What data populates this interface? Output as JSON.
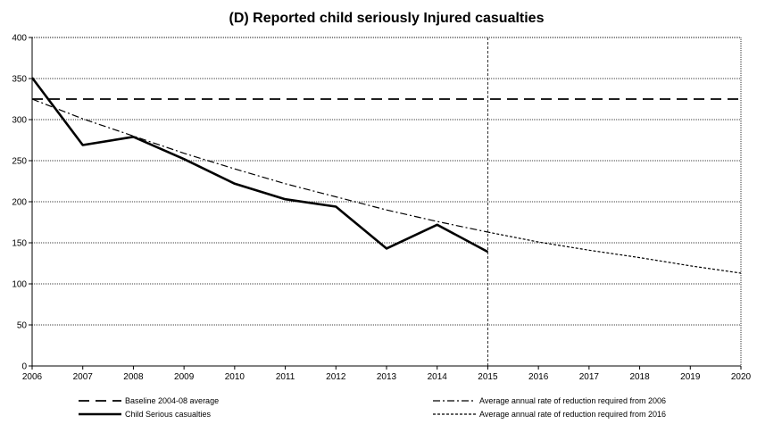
{
  "chart_data": {
    "type": "line",
    "title": "(D) Reported child seriously Injured casualties",
    "xlabel": "",
    "ylabel": "",
    "xlim": [
      2006,
      2020
    ],
    "ylim": [
      0,
      400
    ],
    "x_ticks": [
      "2006",
      "2007",
      "2008",
      "2009",
      "2010",
      "2011",
      "2012",
      "2013",
      "2014",
      "2015",
      "2016",
      "2017",
      "2018",
      "2019",
      "2020"
    ],
    "y_ticks": [
      "0",
      "50",
      "100",
      "150",
      "200",
      "250",
      "300",
      "350",
      "400"
    ],
    "grid": true,
    "vertical_marker_x": 2015,
    "legend_position": "bottom",
    "series": [
      {
        "name": "Baseline 2004-08 average",
        "style": "dashed",
        "x": [
          2006,
          2020
        ],
        "values": [
          325,
          325
        ]
      },
      {
        "name": "Child Serious casualties",
        "style": "solid-thick",
        "x": [
          2006,
          2007,
          2008,
          2009,
          2010,
          2011,
          2012,
          2013,
          2014,
          2015
        ],
        "values": [
          351,
          269,
          279,
          252,
          222,
          203,
          194,
          143,
          172,
          139
        ]
      },
      {
        "name": "Average annual rate of reduction required from 2006",
        "style": "dash-dot",
        "x": [
          2006,
          2007,
          2008,
          2009,
          2010,
          2011,
          2012,
          2013,
          2014,
          2015
        ],
        "values": [
          325,
          301,
          280,
          259,
          240,
          222,
          206,
          190,
          176,
          163
        ]
      },
      {
        "name": "Average annual rate of reduction required from 2016",
        "style": "dotted",
        "x": [
          2015,
          2016,
          2017,
          2018,
          2019,
          2020
        ],
        "values": [
          163,
          151,
          141,
          132,
          122,
          113
        ]
      }
    ]
  }
}
